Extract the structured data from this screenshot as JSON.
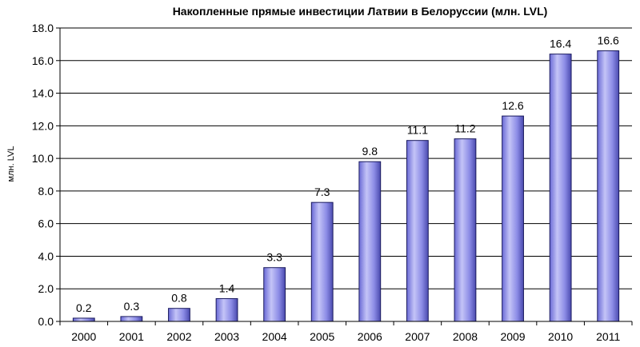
{
  "chart_data": {
    "type": "bar",
    "title": "Накопленные прямые инвестиции Латвии в Белоруссии (млн. LVL)",
    "ylabel": "млн. LVL",
    "xlabel": "",
    "categories": [
      "2000",
      "2001",
      "2002",
      "2003",
      "2004",
      "2005",
      "2006",
      "2007",
      "2008",
      "2009",
      "2010",
      "2011"
    ],
    "values": [
      0.2,
      0.3,
      0.8,
      1.4,
      3.3,
      7.3,
      9.8,
      11.1,
      11.2,
      12.6,
      16.4,
      16.6
    ],
    "data_labels": [
      "0.2",
      "0.3",
      "0.8",
      "1.4",
      "3.3",
      "7.3",
      "9.8",
      "11.1",
      "11.2",
      "12.6",
      "16.4",
      "16.6"
    ],
    "ylim": [
      0,
      18
    ],
    "yticks": [
      0,
      2,
      4,
      6,
      8,
      10,
      12,
      14,
      16,
      18
    ],
    "ytick_labels": [
      "0.0",
      "2.0",
      "4.0",
      "6.0",
      "8.0",
      "10.0",
      "12.0",
      "14.0",
      "16.0",
      "18.0"
    ],
    "grid": "horizontal",
    "legend": "none",
    "colors": {
      "bar_fill": "#8c8ce6",
      "bar_edge": "#1a1a5e",
      "bar_highlight": "#c4c4f7",
      "grid": "#000000"
    }
  }
}
